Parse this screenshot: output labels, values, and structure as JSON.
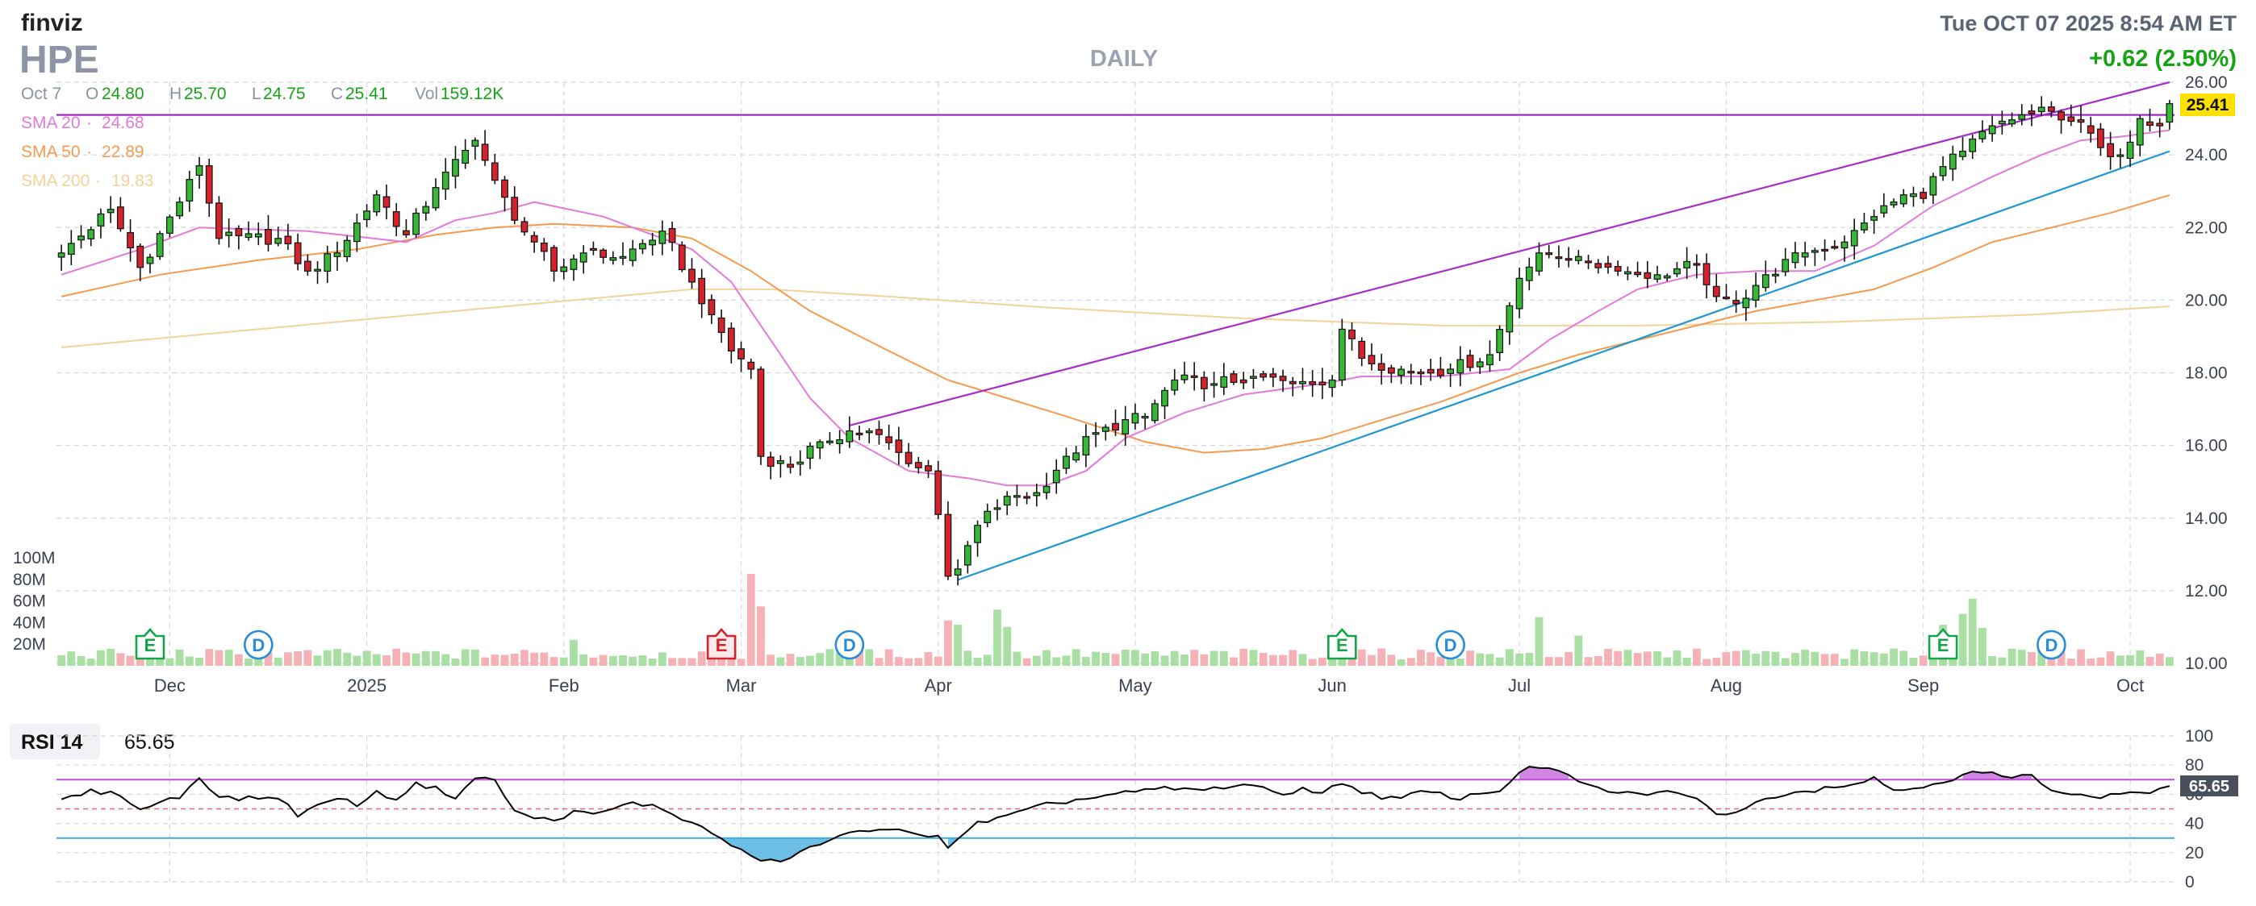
{
  "header": {
    "logo": "finviz",
    "ticker": "HPE",
    "timeframe": "DAILY",
    "datetime": "Tue OCT 07 2025 8:54 AM ET",
    "change": "+0.62 (2.50%)"
  },
  "ohlc_bar": {
    "date": "Oct 7",
    "o_label": "O",
    "o": "24.80",
    "h_label": "H",
    "h": "25.70",
    "l_label": "L",
    "l": "24.75",
    "c_label": "C",
    "c": "25.41",
    "vol_label": "Vol",
    "vol": "159.12K"
  },
  "sma_legend": [
    {
      "label": "SMA 20",
      "value": "24.68",
      "color": "#e17ad9"
    },
    {
      "label": "SMA 50",
      "value": "22.89",
      "color": "#f59a4e"
    },
    {
      "label": "SMA 200",
      "value": "19.83",
      "color": "#f2d39a"
    }
  ],
  "last_price_label": "25.41",
  "colors": {
    "up": "#36b836",
    "down": "#d3242d",
    "up_vol": "#a9dfa3",
    "down_vol": "#f4b2b6",
    "sma20": "#e17ad9",
    "sma50": "#f59a4e",
    "sma200": "#f2d39a",
    "trend_upper": "#a72fc9",
    "trend_lower": "#1d97d2",
    "hline": "#9b1fc0",
    "rsi_line": "#000000",
    "rsi_over": "#c05ed8",
    "rsi_under": "#3ea9dd",
    "text_grey": "#8a94a6",
    "green_text": "#16a316",
    "highlight": "#ffe100"
  },
  "chart_data": {
    "type": "candlestick",
    "ticker": "HPE",
    "ylim": [
      10,
      26
    ],
    "y_ticks": [
      "26.00",
      "24.00",
      "22.00",
      "20.00",
      "18.00",
      "16.00",
      "14.00",
      "12.00",
      "10.00"
    ],
    "y_tick_values": [
      26,
      24,
      22,
      20,
      18,
      16,
      14,
      12,
      10
    ],
    "x_tick_labels": [
      "Dec",
      "2025",
      "Feb",
      "Mar",
      "Apr",
      "May",
      "Jun",
      "Jul",
      "Aug",
      "Sep",
      "Oct"
    ],
    "x_tick_index": [
      11,
      31,
      51,
      69,
      89,
      109,
      129,
      148,
      169,
      189,
      210
    ],
    "volume_ticks": [
      "100M",
      "80M",
      "60M",
      "40M",
      "20M"
    ],
    "volume_tick_values": [
      100,
      80,
      60,
      40,
      20
    ],
    "volume_max": 100,
    "ohlc_anchor_closes": [
      [
        0,
        21.3
      ],
      [
        5,
        22.5
      ],
      [
        8,
        20.9
      ],
      [
        12,
        22.7
      ],
      [
        14,
        23.7
      ],
      [
        16,
        21.7
      ],
      [
        22,
        21.7
      ],
      [
        25,
        20.8
      ],
      [
        28,
        21.3
      ],
      [
        32,
        22.9
      ],
      [
        35,
        21.8
      ],
      [
        38,
        23.1
      ],
      [
        42,
        24.4
      ],
      [
        44,
        23.3
      ],
      [
        46,
        22.2
      ],
      [
        48,
        21.6
      ],
      [
        50,
        20.8
      ],
      [
        53,
        21.3
      ],
      [
        57,
        21.2
      ],
      [
        61,
        21.9
      ],
      [
        64,
        20.5
      ],
      [
        66,
        19.6
      ],
      [
        68,
        18.6
      ],
      [
        70,
        18.1
      ],
      [
        71,
        15.7
      ],
      [
        74,
        15.4
      ],
      [
        77,
        16.1
      ],
      [
        80,
        16.4
      ],
      [
        83,
        16.3
      ],
      [
        86,
        15.5
      ],
      [
        88,
        15.3
      ],
      [
        89,
        14.1
      ],
      [
        90,
        12.4
      ],
      [
        91,
        12.6
      ],
      [
        93,
        13.8
      ],
      [
        96,
        14.6
      ],
      [
        99,
        14.7
      ],
      [
        102,
        15.7
      ],
      [
        106,
        16.5
      ],
      [
        110,
        16.8
      ],
      [
        113,
        17.8
      ],
      [
        117,
        17.7
      ],
      [
        121,
        17.9
      ],
      [
        125,
        17.7
      ],
      [
        129,
        17.8
      ],
      [
        130,
        19.2
      ],
      [
        132,
        18.4
      ],
      [
        137,
        18.0
      ],
      [
        141,
        18.1
      ],
      [
        145,
        18.5
      ],
      [
        148,
        20.6
      ],
      [
        150,
        21.3
      ],
      [
        154,
        21.2
      ],
      [
        158,
        20.8
      ],
      [
        162,
        20.7
      ],
      [
        166,
        21.0
      ],
      [
        168,
        20.1
      ],
      [
        170,
        19.9
      ],
      [
        173,
        20.7
      ],
      [
        177,
        21.3
      ],
      [
        181,
        21.6
      ],
      [
        184,
        22.3
      ],
      [
        187,
        22.9
      ],
      [
        189,
        22.8
      ],
      [
        190,
        23.4
      ],
      [
        193,
        24.1
      ],
      [
        196,
        24.8
      ],
      [
        199,
        25.1
      ],
      [
        202,
        25.2
      ],
      [
        205,
        24.9
      ],
      [
        207,
        24.2
      ],
      [
        209,
        24.0
      ],
      [
        211,
        25.0
      ],
      [
        213,
        24.8
      ],
      [
        214,
        25.41
      ]
    ],
    "sma20_points": [
      [
        0,
        20.7
      ],
      [
        8,
        21.4
      ],
      [
        14,
        22.0
      ],
      [
        25,
        21.9
      ],
      [
        35,
        21.6
      ],
      [
        40,
        22.2
      ],
      [
        44,
        22.4
      ],
      [
        48,
        22.7
      ],
      [
        55,
        22.3
      ],
      [
        60,
        21.8
      ],
      [
        64,
        21.4
      ],
      [
        68,
        20.5
      ],
      [
        72,
        18.9
      ],
      [
        76,
        17.3
      ],
      [
        80,
        16.2
      ],
      [
        86,
        15.3
      ],
      [
        92,
        15.1
      ],
      [
        96,
        14.9
      ],
      [
        100,
        14.9
      ],
      [
        104,
        15.3
      ],
      [
        108,
        16.2
      ],
      [
        114,
        16.9
      ],
      [
        120,
        17.4
      ],
      [
        128,
        17.7
      ],
      [
        132,
        17.9
      ],
      [
        140,
        17.9
      ],
      [
        147,
        18.1
      ],
      [
        151,
        18.9
      ],
      [
        156,
        19.7
      ],
      [
        160,
        20.3
      ],
      [
        166,
        20.7
      ],
      [
        172,
        20.8
      ],
      [
        178,
        20.8
      ],
      [
        184,
        21.5
      ],
      [
        190,
        22.6
      ],
      [
        196,
        23.4
      ],
      [
        201,
        24.0
      ],
      [
        205,
        24.4
      ],
      [
        209,
        24.5
      ],
      [
        214,
        24.68
      ]
    ],
    "sma50_points": [
      [
        0,
        20.1
      ],
      [
        10,
        20.7
      ],
      [
        20,
        21.1
      ],
      [
        30,
        21.4
      ],
      [
        38,
        21.8
      ],
      [
        44,
        22.0
      ],
      [
        50,
        22.1
      ],
      [
        58,
        22.0
      ],
      [
        64,
        21.7
      ],
      [
        70,
        20.8
      ],
      [
        76,
        19.7
      ],
      [
        84,
        18.6
      ],
      [
        90,
        17.8
      ],
      [
        96,
        17.3
      ],
      [
        102,
        16.8
      ],
      [
        110,
        16.1
      ],
      [
        116,
        15.8
      ],
      [
        122,
        15.9
      ],
      [
        128,
        16.2
      ],
      [
        134,
        16.7
      ],
      [
        140,
        17.2
      ],
      [
        148,
        18.0
      ],
      [
        154,
        18.5
      ],
      [
        160,
        18.9
      ],
      [
        166,
        19.3
      ],
      [
        172,
        19.7
      ],
      [
        178,
        20.0
      ],
      [
        184,
        20.3
      ],
      [
        190,
        20.9
      ],
      [
        196,
        21.6
      ],
      [
        202,
        22.0
      ],
      [
        208,
        22.4
      ],
      [
        214,
        22.89
      ]
    ],
    "sma200_points": [
      [
        0,
        18.7
      ],
      [
        20,
        19.2
      ],
      [
        40,
        19.7
      ],
      [
        56,
        20.1
      ],
      [
        64,
        20.3
      ],
      [
        72,
        20.3
      ],
      [
        84,
        20.1
      ],
      [
        100,
        19.8
      ],
      [
        120,
        19.5
      ],
      [
        140,
        19.3
      ],
      [
        160,
        19.3
      ],
      [
        180,
        19.4
      ],
      [
        200,
        19.6
      ],
      [
        214,
        19.83
      ]
    ],
    "trendlines": [
      {
        "name": "upper-channel",
        "from": [
          80,
          16.55
        ],
        "to": [
          214,
          26.0
        ]
      },
      {
        "name": "lower-trend",
        "from": [
          91,
          12.3
        ],
        "to": [
          214,
          24.1
        ]
      },
      {
        "name": "resistance",
        "from": [
          0,
          25.1
        ],
        "to": [
          214,
          25.1
        ]
      }
    ],
    "earnings_markers": [
      {
        "letter": "E",
        "index": 9,
        "kind": "earnings-past"
      },
      {
        "letter": "D",
        "index": 20,
        "kind": "dividend"
      },
      {
        "letter": "E",
        "index": 67,
        "kind": "earnings-miss"
      },
      {
        "letter": "D",
        "index": 80,
        "kind": "dividend"
      },
      {
        "letter": "E",
        "index": 130,
        "kind": "earnings-past"
      },
      {
        "letter": "D",
        "index": 141,
        "kind": "dividend"
      },
      {
        "letter": "E",
        "index": 191,
        "kind": "earnings-past"
      },
      {
        "letter": "D",
        "index": 202,
        "kind": "dividend"
      }
    ],
    "volume_spikes": [
      [
        9,
        22
      ],
      [
        52,
        24
      ],
      [
        70,
        85
      ],
      [
        71,
        55
      ],
      [
        90,
        42
      ],
      [
        91,
        38
      ],
      [
        95,
        52
      ],
      [
        96,
        36
      ],
      [
        150,
        45
      ],
      [
        154,
        28
      ],
      [
        191,
        38
      ],
      [
        193,
        48
      ],
      [
        194,
        62
      ],
      [
        195,
        35
      ]
    ],
    "rsi": {
      "label": "RSI 14",
      "value": "65.65",
      "ylim": [
        0,
        100
      ],
      "ticks": [
        "100",
        "80",
        "60",
        "40",
        "20",
        "0"
      ],
      "tick_values": [
        100,
        80,
        60,
        40,
        20,
        0
      ],
      "overbought": 70,
      "oversold": 30,
      "mid": 50,
      "anchors": [
        [
          0,
          56
        ],
        [
          3,
          62
        ],
        [
          6,
          60
        ],
        [
          8,
          49
        ],
        [
          10,
          55
        ],
        [
          12,
          58
        ],
        [
          14,
          72
        ],
        [
          16,
          58
        ],
        [
          18,
          57
        ],
        [
          22,
          58
        ],
        [
          24,
          46
        ],
        [
          26,
          52
        ],
        [
          28,
          58
        ],
        [
          30,
          53
        ],
        [
          32,
          61
        ],
        [
          34,
          57
        ],
        [
          36,
          67
        ],
        [
          38,
          64
        ],
        [
          40,
          58
        ],
        [
          42,
          71
        ],
        [
          44,
          70
        ],
        [
          46,
          48
        ],
        [
          48,
          44
        ],
        [
          50,
          42
        ],
        [
          52,
          48
        ],
        [
          54,
          46
        ],
        [
          56,
          50
        ],
        [
          58,
          54
        ],
        [
          60,
          52
        ],
        [
          62,
          47
        ],
        [
          64,
          40
        ],
        [
          66,
          34
        ],
        [
          68,
          25
        ],
        [
          70,
          17
        ],
        [
          72,
          14
        ],
        [
          74,
          16
        ],
        [
          76,
          24
        ],
        [
          78,
          28
        ],
        [
          80,
          33
        ],
        [
          82,
          36
        ],
        [
          84,
          37
        ],
        [
          86,
          33
        ],
        [
          88,
          30
        ],
        [
          89,
          33
        ],
        [
          90,
          24
        ],
        [
          91,
          30
        ],
        [
          93,
          40
        ],
        [
          96,
          45
        ],
        [
          100,
          53
        ],
        [
          104,
          57
        ],
        [
          108,
          61
        ],
        [
          112,
          64
        ],
        [
          116,
          63
        ],
        [
          120,
          67
        ],
        [
          124,
          60
        ],
        [
          126,
          64
        ],
        [
          128,
          61
        ],
        [
          130,
          68
        ],
        [
          132,
          62
        ],
        [
          134,
          58
        ],
        [
          136,
          57
        ],
        [
          138,
          62
        ],
        [
          140,
          60
        ],
        [
          142,
          57
        ],
        [
          144,
          61
        ],
        [
          146,
          62
        ],
        [
          148,
          76
        ],
        [
          150,
          79
        ],
        [
          152,
          76
        ],
        [
          154,
          68
        ],
        [
          156,
          64
        ],
        [
          158,
          61
        ],
        [
          160,
          60
        ],
        [
          162,
          61
        ],
        [
          164,
          62
        ],
        [
          166,
          56
        ],
        [
          168,
          47
        ],
        [
          170,
          48
        ],
        [
          172,
          54
        ],
        [
          174,
          59
        ],
        [
          176,
          62
        ],
        [
          178,
          63
        ],
        [
          180,
          66
        ],
        [
          182,
          67
        ],
        [
          184,
          71
        ],
        [
          186,
          63
        ],
        [
          188,
          64
        ],
        [
          190,
          68
        ],
        [
          192,
          70
        ],
        [
          194,
          75
        ],
        [
          196,
          74
        ],
        [
          198,
          71
        ],
        [
          200,
          73
        ],
        [
          202,
          64
        ],
        [
          204,
          60
        ],
        [
          206,
          58
        ],
        [
          208,
          59
        ],
        [
          210,
          62
        ],
        [
          212,
          61
        ],
        [
          214,
          65.65
        ]
      ]
    }
  }
}
